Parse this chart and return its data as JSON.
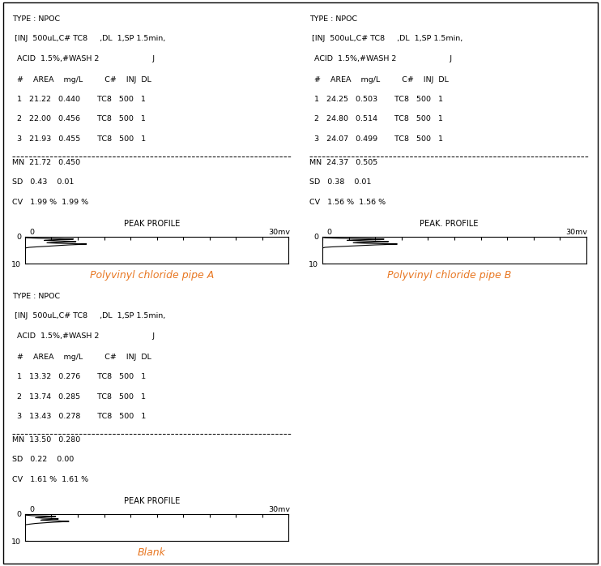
{
  "bg_color": "#ffffff",
  "border_color": "#000000",
  "text_color": "#000000",
  "mono_font": "Courier New",
  "panels": [
    {
      "title_label": "Polyvinyl chloride pipe A",
      "title_color": "#E87722",
      "header_lines": [
        "TYPE : NPOC",
        " [INJ  500uL,C# TC8     ,DL  1,SP 1.5min,",
        "  ACID  1.5%,#WASH 2                      J"
      ],
      "col_header": "  #    AREA    mg/L         C#    INJ  DL",
      "rows": [
        "  1   21.22   0.440       TC8   500   1",
        "  2   22.00   0.456       TC8   500   1",
        "  3   21.93   0.455       TC8   500   1"
      ],
      "stats": [
        "MN  21.72   0.450",
        "SD   0.43    0.01",
        "CV   1.99 %  1.99 %"
      ],
      "peak_title": "PEAK PROFILE",
      "peak_x_left": "0",
      "peak_x_right": "30mv",
      "peak_y_top": "0",
      "peak_y_bottom": "10",
      "peaks_t": [
        0.3,
        0.5,
        0.7,
        0.85,
        1.0,
        1.15,
        1.3,
        1.45,
        1.6,
        1.75,
        1.9,
        2.05,
        2.2,
        2.35,
        2.5,
        2.65,
        2.8,
        2.95,
        3.1,
        3.25,
        3.4,
        3.55,
        3.7,
        3.85,
        4.0,
        4.2,
        4.5,
        5.0,
        6.0,
        7.0,
        8.0,
        9.0,
        10.0
      ],
      "peaks_v": [
        0.0,
        0.2,
        1.5,
        4.0,
        5.5,
        4.2,
        2.8,
        2.2,
        3.5,
        5.0,
        5.8,
        4.5,
        3.0,
        2.5,
        3.8,
        5.5,
        7.0,
        6.2,
        5.0,
        4.2,
        3.5,
        2.8,
        2.0,
        1.2,
        0.5,
        0.1,
        0.0,
        0.0,
        0.0,
        0.0,
        0.0,
        0.0,
        0.0
      ]
    },
    {
      "title_label": "Polyvinyl chloride pipe B",
      "title_color": "#E87722",
      "header_lines": [
        "TYPE : NPOC",
        " [INJ  500uL,C# TC8     ,DL  1,SP 1.5min,",
        "  ACID  1.5%,#WASH 2                      J"
      ],
      "col_header": "  #    AREA    mg/L         C#    INJ  DL",
      "rows": [
        "  1   24.25   0.503       TC8   500   1",
        "  2   24.80   0.514       TC8   500   1",
        "  3   24.07   0.499       TC8   500   1"
      ],
      "stats": [
        "MN  24.37   0.505",
        "SD   0.38    0.01",
        "CV   1.56 %  1.56 %"
      ],
      "peak_title": "PEAK. PROFILE",
      "peak_x_left": "0",
      "peak_x_right": "30mv",
      "peak_y_top": "0",
      "peak_y_bottom": "10",
      "peaks_t": [
        0.3,
        0.5,
        0.7,
        0.85,
        1.0,
        1.15,
        1.3,
        1.45,
        1.6,
        1.75,
        1.9,
        2.05,
        2.2,
        2.35,
        2.5,
        2.65,
        2.8,
        2.95,
        3.1,
        3.25,
        3.4,
        3.55,
        3.7,
        3.85,
        4.0,
        4.2,
        4.5,
        5.0,
        6.0,
        7.0,
        8.0,
        9.0,
        10.0
      ],
      "peaks_v": [
        0.0,
        0.3,
        2.0,
        5.5,
        7.0,
        5.5,
        3.5,
        2.8,
        4.5,
        6.5,
        7.5,
        6.0,
        4.0,
        3.5,
        5.0,
        7.0,
        8.5,
        7.5,
        6.0,
        5.0,
        4.0,
        3.0,
        2.0,
        1.0,
        0.3,
        0.05,
        0.0,
        0.0,
        0.0,
        0.0,
        0.0,
        0.0,
        0.0
      ]
    },
    {
      "title_label": "Blank",
      "title_color": "#E87722",
      "header_lines": [
        "TYPE : NPOC",
        " [INJ  500uL,C# TC8     ,DL  1,SP 1.5min,",
        "  ACID  1.5%,#WASH 2                      J"
      ],
      "col_header": "  #    AREA    mg/L         C#    INJ  DL",
      "rows": [
        "  1   13.32   0.276       TC8   500   1",
        "  2   13.74   0.285       TC8   500   1",
        "  3   13.43   0.278       TC8   500   1"
      ],
      "stats": [
        "MN  13.50   0.280",
        "SD   0.22    0.00",
        "CV   1.61 %  1.61 %"
      ],
      "peak_title": "PEAK PROFILE",
      "peak_x_left": "0",
      "peak_x_right": "30mv",
      "peak_y_top": "0",
      "peak_y_bottom": "10",
      "peaks_t": [
        0.3,
        0.5,
        0.7,
        0.85,
        1.0,
        1.15,
        1.3,
        1.45,
        1.6,
        1.75,
        1.9,
        2.05,
        2.2,
        2.35,
        2.5,
        2.65,
        2.8,
        2.95,
        3.1,
        3.25,
        3.4,
        3.55,
        3.7,
        3.85,
        4.0,
        4.2,
        4.5,
        5.0,
        6.0,
        7.0,
        8.0,
        9.0,
        10.0
      ],
      "peaks_v": [
        0.0,
        0.1,
        0.8,
        2.5,
        3.5,
        2.5,
        1.5,
        1.2,
        2.0,
        3.2,
        3.8,
        3.0,
        2.0,
        1.8,
        2.8,
        4.0,
        5.0,
        4.2,
        3.2,
        2.5,
        1.8,
        1.2,
        0.8,
        0.4,
        0.1,
        0.0,
        0.0,
        0.0,
        0.0,
        0.0,
        0.0,
        0.0,
        0.0
      ]
    }
  ]
}
